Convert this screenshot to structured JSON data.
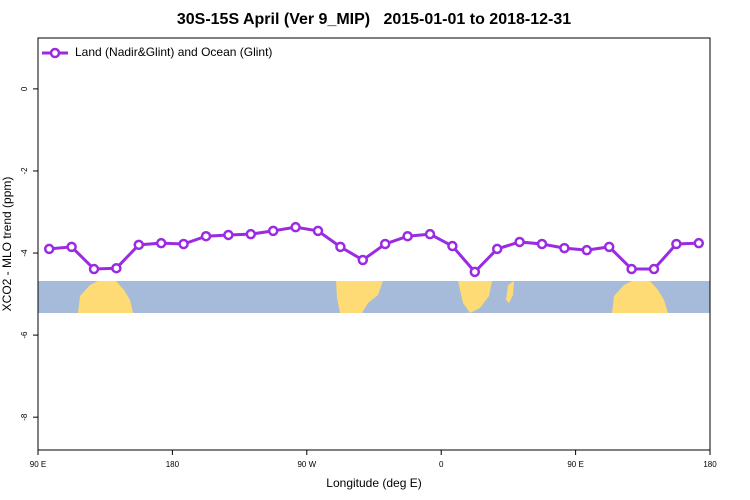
{
  "chart_data": {
    "type": "line",
    "title": "30S-15S April (Ver 9_MIP)   2015-01-01 to 2018-12-31",
    "xlabel": "Longitude (deg E)",
    "ylabel": "XCO2 - MLO trend (ppm)",
    "xlim": [
      90,
      540
    ],
    "ylim": [
      -8.8,
      1.24
    ],
    "xticks": [
      {
        "value": 90,
        "label": "90 E"
      },
      180,
      {
        "value": 270,
        "label": "90 W"
      },
      {
        "value": 360,
        "label": "0"
      },
      {
        "value": 450,
        "label": "90 E"
      },
      {
        "value": 540,
        "label": "180"
      }
    ],
    "yticks": [
      0,
      -2,
      -4,
      -6,
      -8
    ],
    "legend": "top-left",
    "x": [
      97.5,
      112.5,
      127.5,
      142.5,
      157.5,
      172.5,
      187.5,
      202.5,
      217.5,
      232.5,
      247.5,
      262.5,
      277.5,
      292.5,
      307.5,
      322.5,
      337.5,
      352.5,
      367.5,
      382.5,
      397.5,
      412.5,
      427.5,
      442.5,
      457.5,
      472.5,
      487.5,
      502.5,
      517.5,
      532.5
    ],
    "series": [
      {
        "name": "Land (Nadir&Glint) and Ocean (Glint)",
        "color": "#9a2be2",
        "values": [
          -3.9,
          -3.85,
          -4.39,
          -4.37,
          -3.8,
          -3.76,
          -3.78,
          -3.59,
          -3.56,
          -3.54,
          -3.46,
          -3.37,
          -3.46,
          -3.85,
          -4.17,
          -3.78,
          -3.59,
          -3.54,
          -3.83,
          -4.46,
          -3.9,
          -3.73,
          -3.78,
          -3.88,
          -3.93,
          -3.85,
          -4.39,
          -4.39,
          -3.78,
          -3.76
        ]
      }
    ]
  }
}
